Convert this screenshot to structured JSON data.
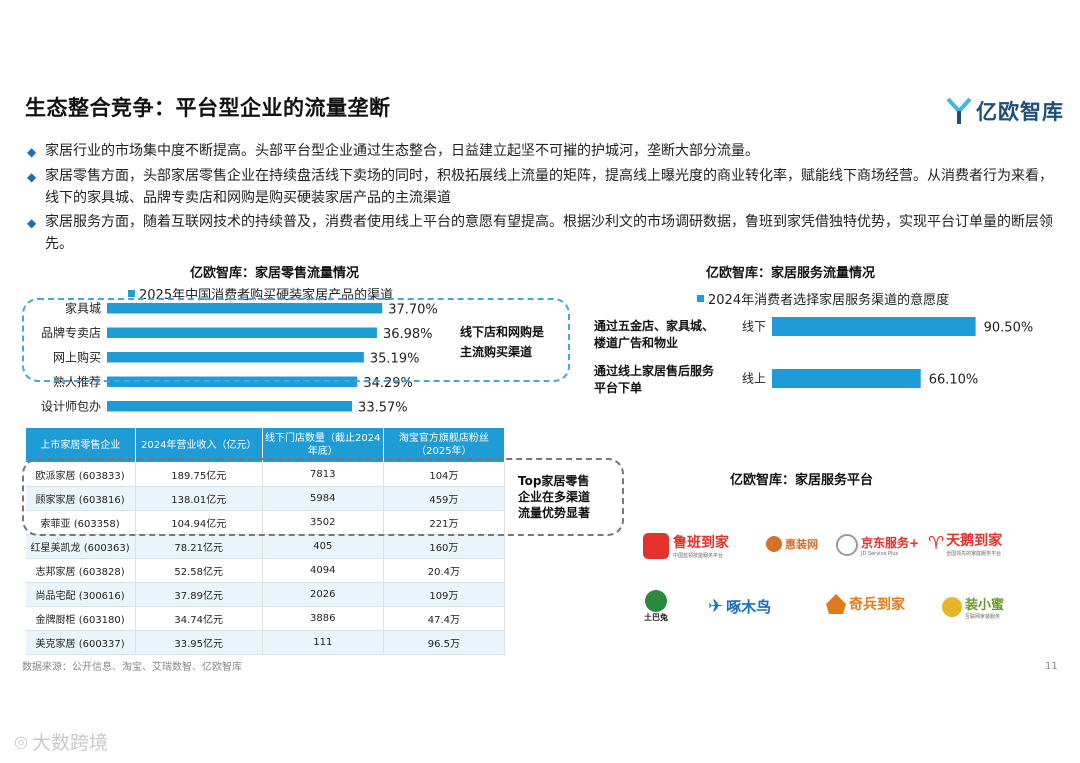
{
  "title": "生态整合竞争：平台型企业的流量垄断",
  "logo": {
    "text": "亿欧智库"
  },
  "bullets": [
    "家居行业的市场集中度不断提高。头部平台型企业通过生态整合，日益建立起坚不可摧的护城河，垄断大部分流量。",
    "家居零售方面，头部家居零售企业在持续盘活线下卖场的同时，积极拓展线上流量的矩阵，提高线上曝光度的商业转化率，赋能线下商场经营。从消费者行为来看，线下的家具城、品牌专卖店和网购是购买硬装家居产品的主流渠道",
    "家居服务方面，随着互联网技术的持续普及，消费者使用线上平台的意愿有望提高。根据沙利文的市场调研数据，鲁班到家凭借独特优势，实现平台订单量的断层领先。"
  ],
  "retail_section": {
    "label": "亿欧智库：家居零售流量情况",
    "note": [
      "线下店和网购是",
      "主流购买渠道"
    ]
  },
  "service_section": {
    "label": "亿欧智库：家居服务流量情况",
    "notes": [
      "通过五金店、家具城、楼道广告和物业",
      "通过线上家居售后服务平台下单"
    ]
  },
  "platform_section": {
    "label": "亿欧智库：家居服务平台"
  },
  "chart_data": [
    {
      "type": "bar",
      "orientation": "horizontal",
      "legend": "2025年中国消费者购买硬装家居产品的渠道",
      "categories": [
        "家具城",
        "品牌专卖店",
        "网上购买",
        "熟人推荐",
        "设计师包办"
      ],
      "values": [
        37.7,
        36.98,
        35.19,
        34.29,
        33.57
      ],
      "value_labels": [
        "37.70%",
        "36.98%",
        "35.19%",
        "34.29%",
        "33.57%"
      ],
      "color": "#1f9bd6"
    },
    {
      "type": "bar",
      "orientation": "horizontal",
      "legend": "2024年消费者选择家居服务渠道的意愿度",
      "categories": [
        "线下",
        "线上"
      ],
      "values": [
        90.5,
        66.1
      ],
      "value_labels": [
        "90.50%",
        "66.10%"
      ],
      "color": "#1f9bd6"
    }
  ],
  "table": {
    "headers": [
      "上市家居零售企业",
      "2024年营业收入（亿元）",
      "线下门店数量（截止2024年底）",
      "淘宝官方旗舰店粉丝（2025年）"
    ],
    "rows": [
      [
        "欧派家居 (603833)",
        "189.75亿元",
        "7813",
        "104万"
      ],
      [
        "顾家家居 (603816)",
        "138.01亿元",
        "5984",
        "459万"
      ],
      [
        "索菲亚 (603358)",
        "104.94亿元",
        "3502",
        "221万"
      ],
      [
        "红星美凯龙 (600363)",
        "78.21亿元",
        "405",
        "160万"
      ],
      [
        "志邦家居 (603828)",
        "52.58亿元",
        "4094",
        "20.4万"
      ],
      [
        "尚品宅配 (300616)",
        "37.89亿元",
        "2026",
        "109万"
      ],
      [
        "金牌厨柜 (603180)",
        "34.74亿元",
        "3886",
        "47.4万"
      ],
      [
        "美克家居 (600337)",
        "33.95亿元",
        "111",
        "96.5万"
      ]
    ],
    "note": [
      "Top家居零售",
      "企业在多渠道",
      "流量优势显著"
    ]
  },
  "platforms": [
    {
      "name": "鲁班到家",
      "sub": "中国蓝领技能服务平台",
      "color": "#e4312b"
    },
    {
      "name": "惠装网",
      "sub": "",
      "color": "#d4722a"
    },
    {
      "name": "京东服务+",
      "sub": "JD Service Plus",
      "color": "#e4312b"
    },
    {
      "name": "天鹅到家",
      "sub": "全国领先的家庭服务平台",
      "color": "#e4312b"
    },
    {
      "name": "土巴兔",
      "sub": "",
      "color": "#2a8a3c"
    },
    {
      "name": "啄木鸟",
      "sub": "",
      "color": "#1a6fb5"
    },
    {
      "name": "奇兵到家",
      "sub": "",
      "color": "#e07a1f"
    },
    {
      "name": "装小蜜",
      "sub": "互联网家装服务",
      "color": "#6a9a2a"
    }
  ],
  "footer": {
    "source": "数据来源：公开信息、淘宝、艾瑞数智、亿欧智库",
    "page": "11"
  },
  "watermark": "大数跨境"
}
